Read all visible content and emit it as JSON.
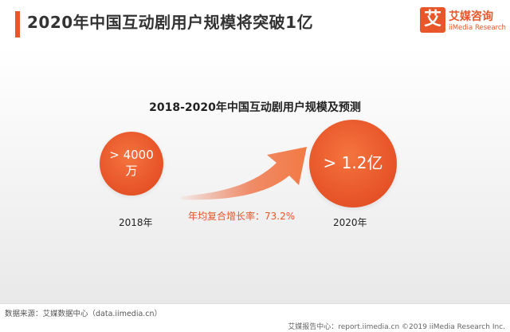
{
  "header": {
    "title": "2020年中国互动剧用户规模将突破1亿",
    "logo_mark": "艾",
    "logo_cn": "艾媒咨询",
    "logo_en": "iiMedia Research"
  },
  "chart_data": {
    "type": "bubble",
    "title": "2018-2020年中国互动剧用户规模及预测",
    "categories": [
      "2018年",
      "2020年"
    ],
    "value_labels": [
      "> 4000\n万",
      "> 1.2亿"
    ],
    "values_wan": [
      4000,
      12000
    ],
    "annotation": "年均复合增长率：73.2%",
    "colors": {
      "bubble": "#e8562a",
      "accent": "#e8562a"
    }
  },
  "footer": {
    "source": "数据来源：艾媒数据中心（data.iimedia.cn）",
    "right": "艾媒报告中心：report.iimedia.cn  ©2019  iiMedia Research Inc."
  }
}
